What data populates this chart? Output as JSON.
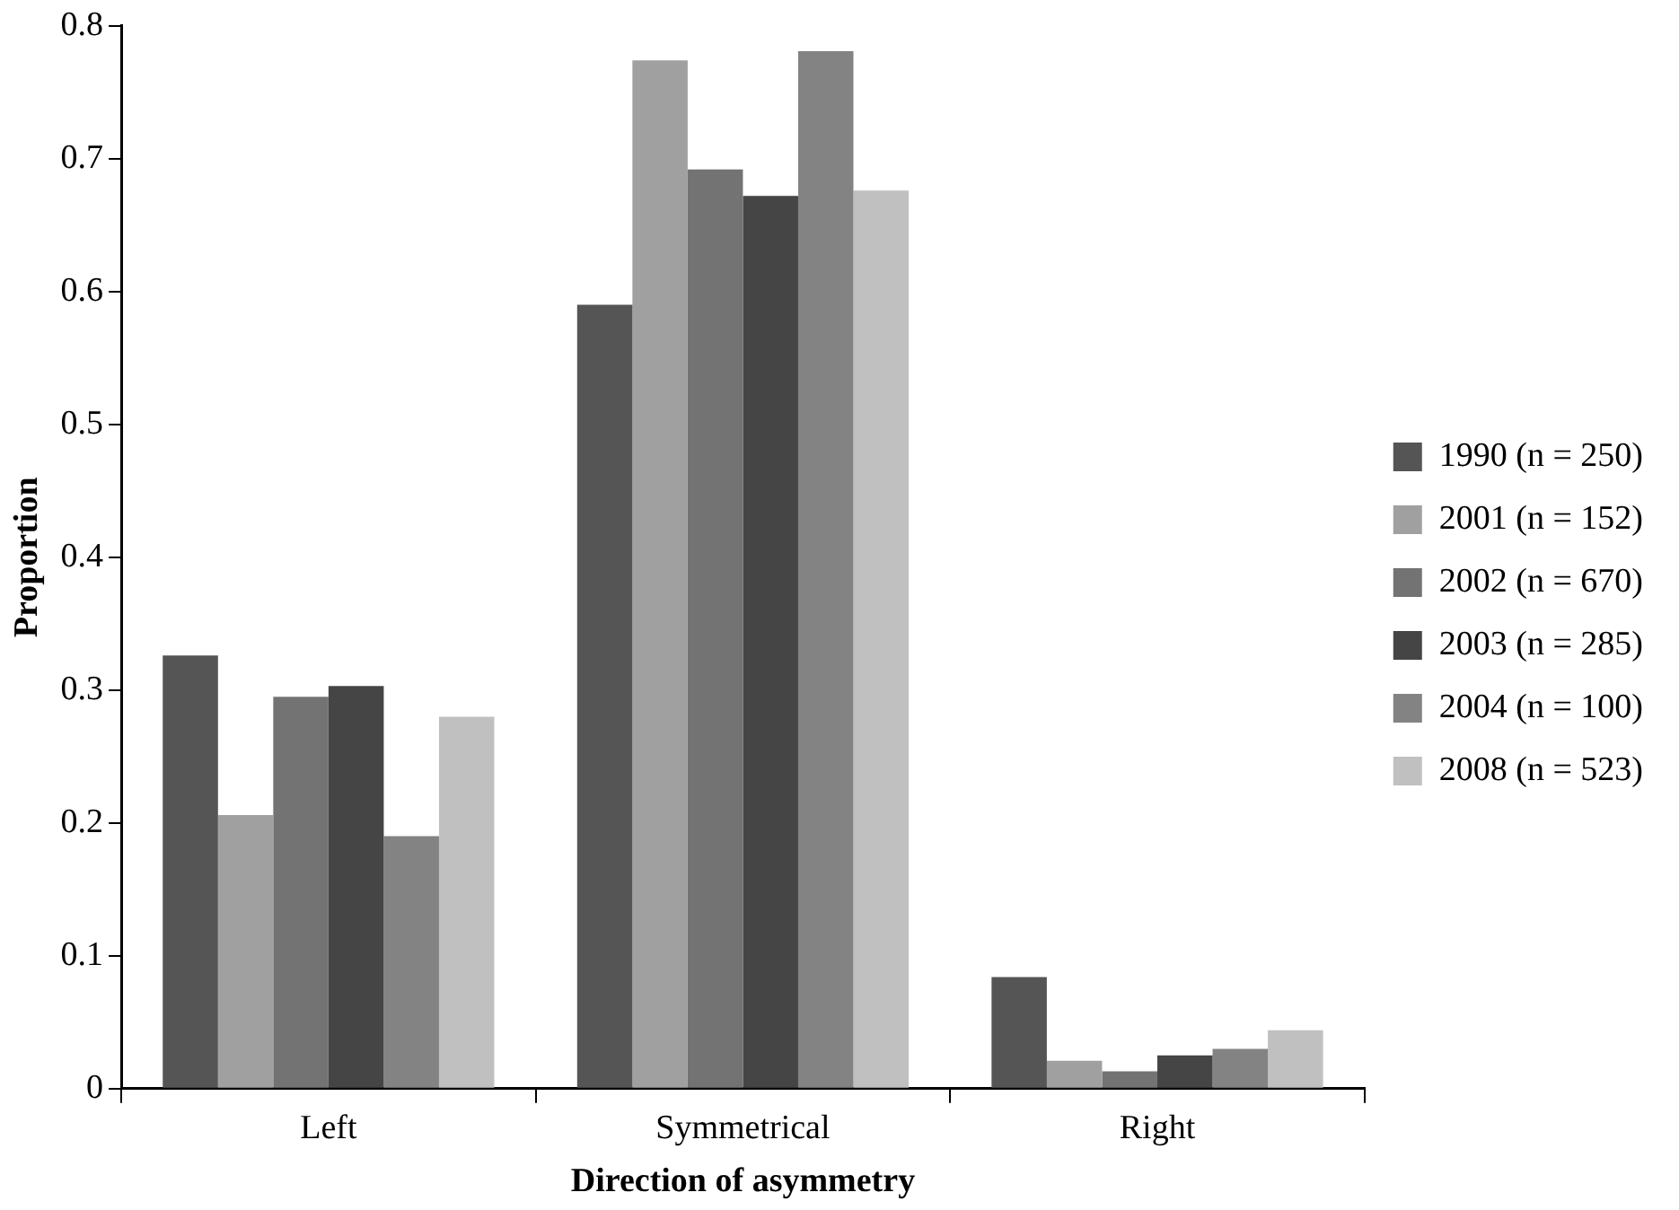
{
  "chart_data": {
    "type": "bar",
    "xlabel": "Direction of asymmetry",
    "ylabel": "Proportion",
    "categories": [
      "Left",
      "Symmetrical",
      "Right"
    ],
    "series": [
      {
        "name": "1990 (n = 250)",
        "color": "#555555",
        "values": [
          0.326,
          0.59,
          0.084
        ]
      },
      {
        "name": "2001 (n = 152)",
        "color": "#a0a0a0",
        "values": [
          0.206,
          0.774,
          0.021
        ]
      },
      {
        "name": "2002 (n = 670)",
        "color": "#737373",
        "values": [
          0.295,
          0.692,
          0.013
        ]
      },
      {
        "name": "2003 (n = 285)",
        "color": "#454545",
        "values": [
          0.303,
          0.672,
          0.025
        ]
      },
      {
        "name": "2004 (n = 100)",
        "color": "#838383",
        "values": [
          0.19,
          0.781,
          0.03
        ]
      },
      {
        "name": "2008 (n = 523)",
        "color": "#c0c0c0",
        "values": [
          0.28,
          0.676,
          0.044
        ]
      }
    ],
    "ylim": [
      0,
      0.8
    ],
    "yticks": [
      0,
      0.1,
      0.2,
      0.3,
      0.4,
      0.5,
      0.6,
      0.7,
      0.8
    ],
    "grid": false,
    "legend": "right"
  }
}
